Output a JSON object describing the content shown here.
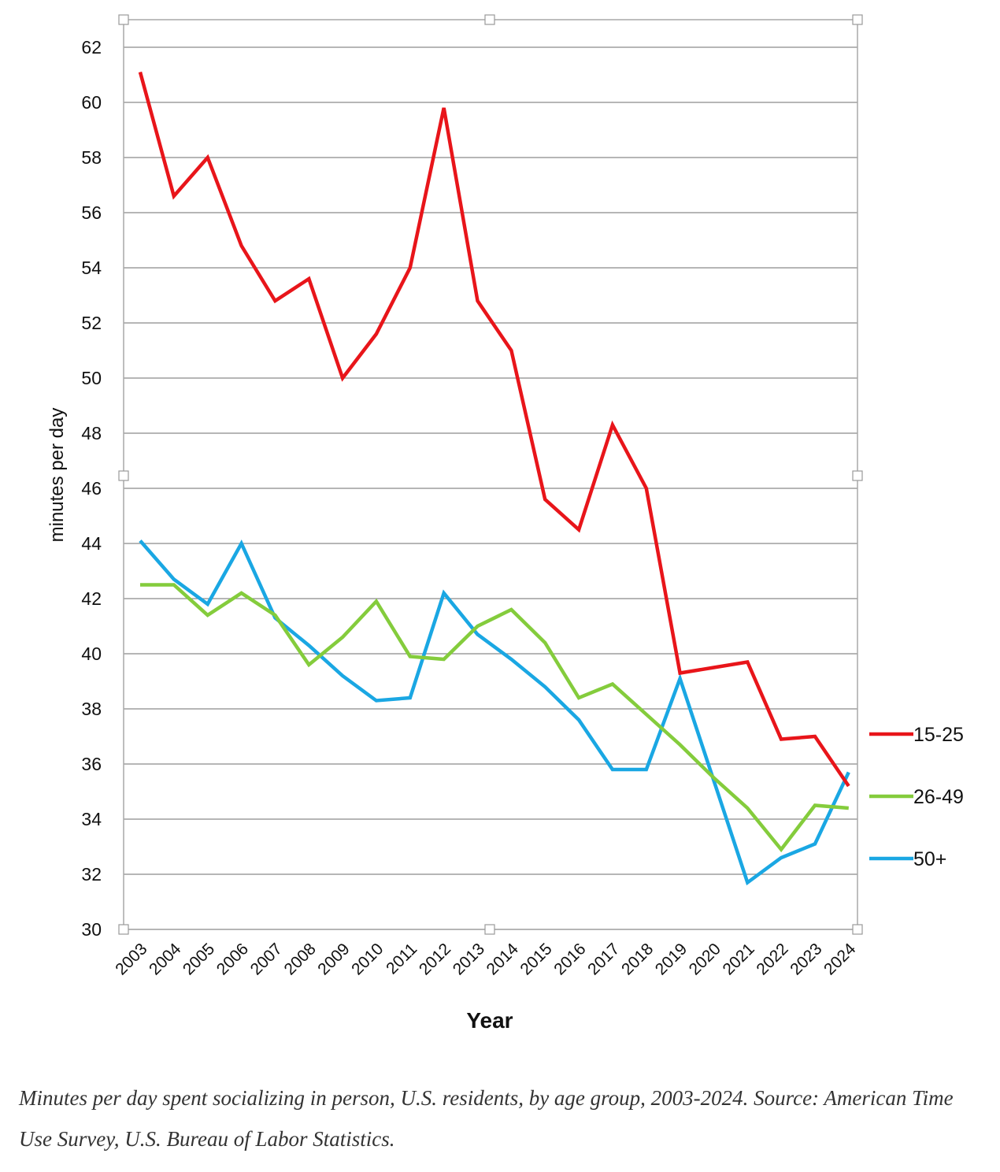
{
  "chart_data": {
    "type": "line",
    "x": [
      "2003",
      "2004",
      "2005",
      "2006",
      "2007",
      "2008",
      "2009",
      "2010",
      "2011",
      "2012",
      "2013",
      "2014",
      "2015",
      "2016",
      "2017",
      "2018",
      "2019",
      "2020",
      "2021",
      "2022",
      "2023",
      "2024"
    ],
    "series": [
      {
        "name": "15-25",
        "color": "#e8151a",
        "values": [
          61.1,
          56.6,
          58.0,
          54.8,
          52.8,
          53.6,
          50.0,
          51.6,
          54.0,
          59.8,
          52.8,
          51.0,
          45.6,
          44.5,
          48.3,
          46.0,
          39.3,
          39.5,
          39.7,
          36.9,
          37.0,
          35.2
        ]
      },
      {
        "name": "26-49",
        "color": "#84cc3c",
        "values": [
          42.5,
          42.5,
          41.4,
          42.2,
          41.4,
          39.6,
          40.6,
          41.9,
          39.9,
          39.8,
          41.0,
          41.6,
          40.4,
          38.4,
          38.9,
          37.8,
          36.7,
          35.5,
          34.4,
          32.9,
          34.5,
          34.4
        ]
      },
      {
        "name": "50+",
        "color": "#1aa7e3",
        "values": [
          44.1,
          42.7,
          41.8,
          44.0,
          41.3,
          40.3,
          39.2,
          38.3,
          38.4,
          42.2,
          40.7,
          39.8,
          38.8,
          37.6,
          35.8,
          35.8,
          39.1,
          35.4,
          31.7,
          32.6,
          33.1,
          35.7
        ]
      }
    ],
    "title": "",
    "xlabel": "Year",
    "ylabel": "minutes per day",
    "ylim": [
      30,
      62
    ],
    "yticks": [
      30,
      32,
      34,
      36,
      38,
      40,
      42,
      44,
      46,
      48,
      50,
      52,
      54,
      56,
      58,
      60,
      62
    ],
    "grid": true,
    "legend_position": "right"
  },
  "caption": "Minutes per day spent socializing in person, U.S. residents, by age group, 2003-2024. Source: American Time Use Survey, U.S. Bureau of Labor Statistics."
}
